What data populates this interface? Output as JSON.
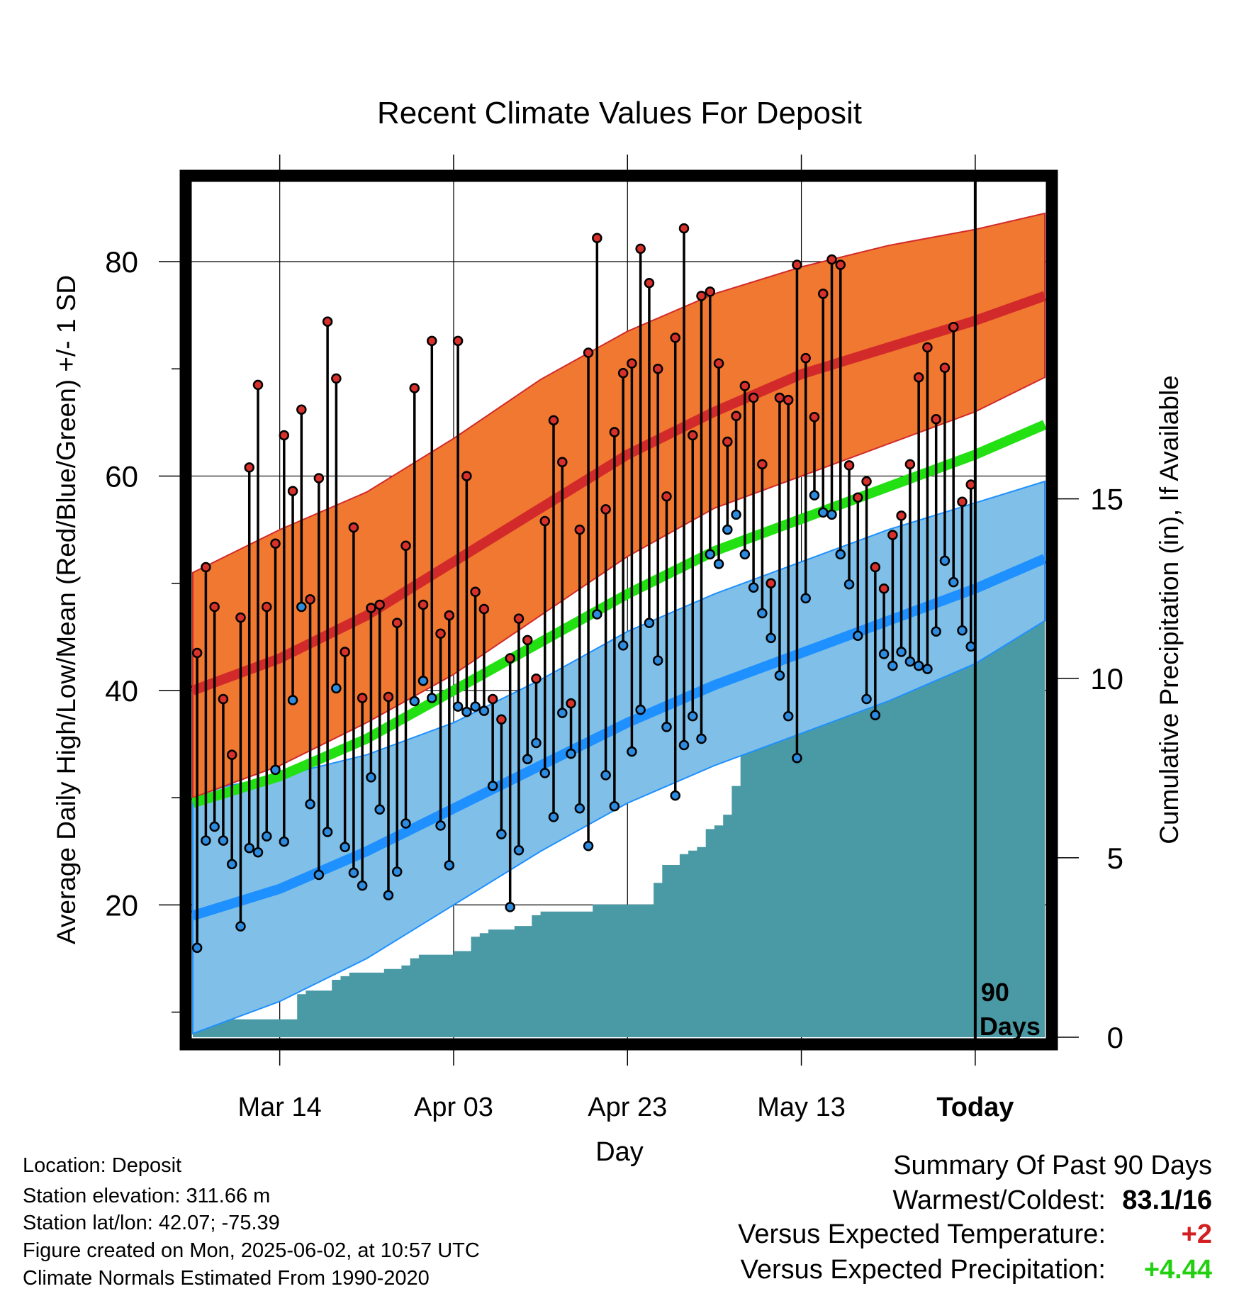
{
  "chart_data": {
    "type": "line",
    "title": "Recent Climate Values For Deposit",
    "xlabel": "Day",
    "ylabel_left": "Average Daily High/Low/Mean (Red/Blue/Green) +/- 1 SD",
    "ylabel_right": "Cumulative Precipitation (in), If Available",
    "x_tick_labels": [
      "Mar 14",
      "Apr 03",
      "Apr 23",
      "May 13",
      "Today"
    ],
    "y_left_ticks": [
      "20",
      "40",
      "60",
      "80"
    ],
    "y_right_ticks": [
      "0",
      "5",
      "10",
      "15"
    ],
    "xlim": [
      "2025-03-04",
      "2025-06-10"
    ],
    "ylim_left": [
      7,
      88
    ],
    "ylim_right": [
      0,
      24
    ],
    "today_marker": {
      "date": "2025-06-02",
      "label_line1": "90",
      "label_line2": "Days"
    },
    "colors": {
      "high_band": "#f07830",
      "high_mean": "#d22a2a",
      "low_band": "#80c0e8",
      "low_mean": "#1e90ff",
      "mean_line": "#22e012",
      "precip": "#4a9aa6",
      "high_dot": "#d8302a",
      "low_dot": "#2d8ce0"
    },
    "normals": {
      "dates": [
        "2025-03-04",
        "2025-03-14",
        "2025-03-24",
        "2025-04-03",
        "2025-04-13",
        "2025-04-23",
        "2025-05-03",
        "2025-05-13",
        "2025-05-23",
        "2025-06-02",
        "2025-06-10"
      ],
      "high_mean": [
        40.0,
        43.0,
        47.0,
        52.0,
        57.0,
        62.0,
        66.0,
        69.5,
        72.0,
        74.5,
        76.8
      ],
      "high_upper": [
        51.0,
        55.0,
        58.5,
        63.5,
        69.0,
        73.5,
        77.0,
        79.5,
        81.5,
        83.0,
        84.5
      ],
      "high_lower": [
        30.0,
        33.0,
        37.0,
        41.5,
        47.0,
        52.5,
        57.0,
        60.0,
        63.0,
        66.0,
        69.2
      ],
      "mean": [
        29.5,
        32.0,
        35.5,
        40.0,
        44.5,
        49.0,
        53.0,
        56.0,
        59.0,
        62.0,
        64.8
      ],
      "low_mean": [
        19.0,
        21.5,
        25.0,
        29.0,
        33.0,
        37.0,
        40.5,
        43.5,
        46.5,
        49.5,
        52.3
      ],
      "low_upper": [
        30.5,
        32.0,
        34.0,
        37.0,
        41.0,
        45.5,
        49.0,
        52.0,
        55.0,
        57.5,
        59.5
      ],
      "low_lower": [
        8.0,
        11.0,
        15.0,
        20.0,
        25.0,
        29.5,
        33.0,
        36.0,
        39.0,
        42.5,
        46.5
      ]
    },
    "daily": {
      "start_date": "2025-03-04",
      "high": [
        43.5,
        51.5,
        47.8,
        39.2,
        34.0,
        46.8,
        60.8,
        68.5,
        47.8,
        53.7,
        63.8,
        58.6,
        66.2,
        48.5,
        59.8,
        74.4,
        69.1,
        43.6,
        55.2,
        39.3,
        47.7,
        48.0,
        39.4,
        46.3,
        53.5,
        68.2,
        48.0,
        72.6,
        45.3,
        47.0,
        72.6,
        60.0,
        49.2,
        47.6,
        39.2,
        37.3,
        43.0,
        46.7,
        44.7,
        41.1,
        55.8,
        65.2,
        61.3,
        38.8,
        55.0,
        71.5,
        82.2,
        56.9,
        64.1,
        69.6,
        70.5,
        81.2,
        78.0,
        70.0,
        58.1,
        72.9,
        83.1,
        63.8,
        76.8,
        77.2,
        70.5,
        63.2,
        65.6,
        68.4,
        67.3,
        61.1,
        50.0,
        67.3,
        67.1,
        79.7,
        71.0,
        65.5,
        77.0,
        80.2,
        79.7,
        61.0,
        58.0,
        59.5,
        51.5,
        49.5,
        54.5,
        56.3,
        61.1,
        69.2,
        72.0,
        65.3,
        70.1,
        73.9,
        57.6,
        59.2
      ],
      "low": [
        16.0,
        26.0,
        27.3,
        26.0,
        23.8,
        18.0,
        25.3,
        24.9,
        26.4,
        32.6,
        25.9,
        39.1,
        47.8,
        29.4,
        22.8,
        26.8,
        40.2,
        25.4,
        23.0,
        21.8,
        31.9,
        28.9,
        20.9,
        23.1,
        27.6,
        39.0,
        40.9,
        39.3,
        27.4,
        23.7,
        38.5,
        38.0,
        38.5,
        38.1,
        31.1,
        26.6,
        19.8,
        25.1,
        33.6,
        35.1,
        32.3,
        28.2,
        37.9,
        34.1,
        29.0,
        25.5,
        47.1,
        32.1,
        29.2,
        44.2,
        34.3,
        38.2,
        46.3,
        42.8,
        36.6,
        30.2,
        34.9,
        37.6,
        35.5,
        52.7,
        51.8,
        55.0,
        56.4,
        52.7,
        49.6,
        47.2,
        44.9,
        41.4,
        37.6,
        33.7,
        48.6,
        58.2,
        56.6,
        56.4,
        52.7,
        49.9,
        45.1,
        39.2,
        37.7,
        43.4,
        42.3,
        43.6,
        42.7,
        42.3,
        42.0,
        45.5,
        52.1,
        50.1,
        45.6,
        44.1
      ]
    },
    "precip": {
      "start_date": "2025-03-04",
      "cumulative": [
        0.2,
        0.4,
        0.5,
        0.5,
        0.5,
        0.5,
        0.5,
        0.5,
        0.5,
        0.5,
        0.5,
        0.5,
        1.2,
        1.3,
        1.3,
        1.3,
        1.6,
        1.7,
        1.8,
        1.8,
        1.8,
        1.8,
        1.9,
        1.9,
        2.0,
        2.2,
        2.3,
        2.3,
        2.3,
        2.3,
        2.4,
        2.4,
        2.8,
        2.9,
        3.0,
        3.0,
        3.0,
        3.1,
        3.1,
        3.4,
        3.5,
        3.5,
        3.5,
        3.5,
        3.5,
        3.5,
        3.7,
        3.7,
        3.7,
        3.7,
        3.7,
        3.7,
        3.7,
        4.3,
        4.8,
        4.8,
        5.1,
        5.2,
        5.3,
        5.8,
        5.9,
        6.2,
        7.0,
        8.4,
        8.5,
        9.5,
        11.2,
        11.3,
        11.8,
        12.2,
        12.4,
        12.5,
        12.5,
        12.5,
        12.6,
        12.7,
        12.7,
        12.8,
        13.2,
        13.5,
        13.7,
        13.8,
        13.8,
        13.8,
        13.8,
        13.8,
        13.9,
        14.0,
        14.3,
        14.3
      ]
    }
  },
  "info": {
    "location": "Location: Deposit",
    "elevation": "Station elevation: 311.66 m",
    "latlon": "Station lat/lon: 42.07; -75.39",
    "created": "Figure created on Mon, 2025-06-02, at 10:57 UTC",
    "normals": "Climate Normals Estimated From 1990-2020"
  },
  "summary": {
    "title": "Summary Of Past 90 Days",
    "warmest_coldest_label": "Warmest/Coldest:",
    "warmest_value": "83.1",
    "coldest_value": "/16",
    "temp_label": "Versus Expected Temperature:",
    "temp_value": "+2",
    "temp_value_color": "#d22020",
    "precip_label": "Versus Expected Precipitation:",
    "precip_value": "+4.44",
    "precip_value_color": "#22d010"
  }
}
